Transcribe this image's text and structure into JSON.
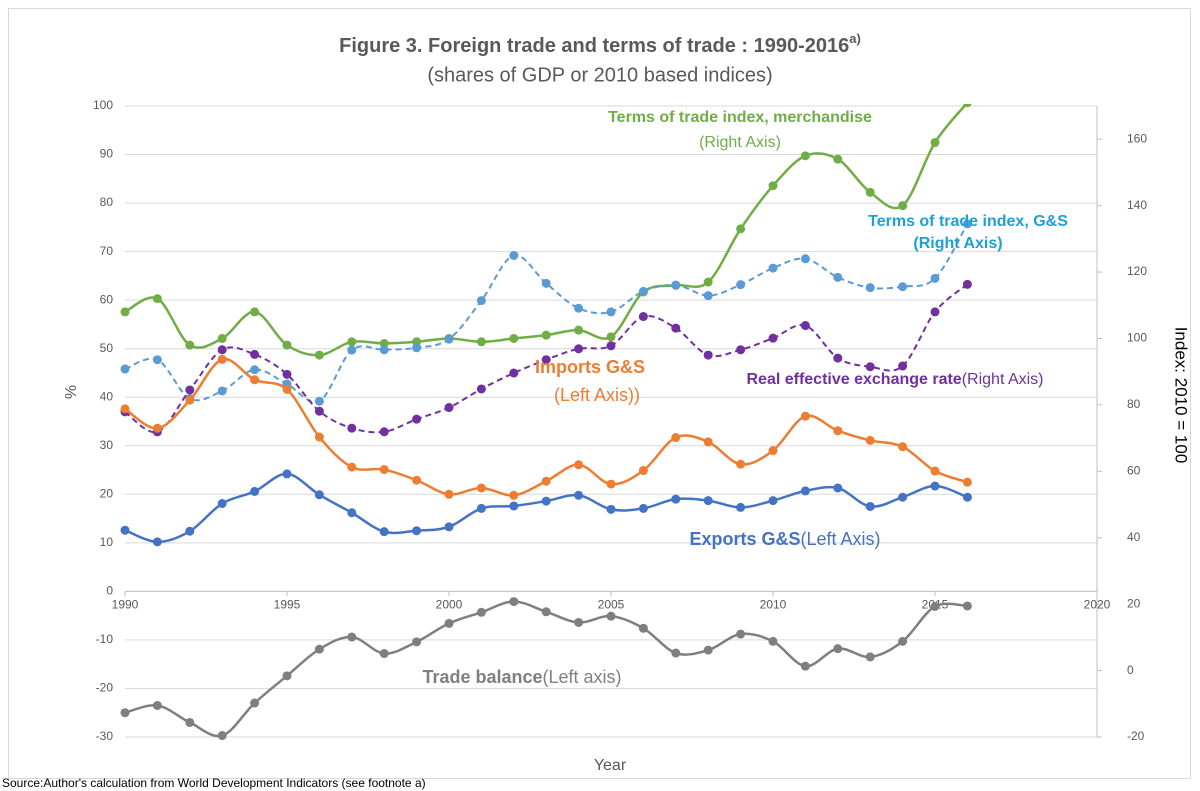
{
  "chart_data": {
    "type": "line",
    "title": "Figure 3. Foreign trade and terms of trade : 1990-2016",
    "title_superscript": "a)",
    "subtitle": "(shares of GDP or 2010 based indices)",
    "xlabel": "Year",
    "ylabel": "%",
    "y2label": "Index: 2010 = 100",
    "source": "Source:Author's calculation from World Development Indicators (see footnote a)",
    "grid": true,
    "xlim": [
      1990,
      2020
    ],
    "xticks": [
      1990,
      1995,
      2000,
      2005,
      2010,
      2015,
      2020
    ],
    "ylim": [
      -30,
      100
    ],
    "yticks": [
      -30,
      -20,
      -10,
      0,
      10,
      20,
      30,
      40,
      50,
      60,
      70,
      80,
      90,
      100
    ],
    "y2lim": [
      -20,
      170
    ],
    "y2ticks": [
      -20,
      0,
      20,
      40,
      60,
      80,
      100,
      120,
      140,
      160
    ],
    "x": [
      1990,
      1991,
      1992,
      1993,
      1994,
      1995,
      1996,
      1997,
      1998,
      1999,
      2000,
      2001,
      2002,
      2003,
      2004,
      2005,
      2006,
      2007,
      2008,
      2009,
      2010,
      2011,
      2012,
      2013,
      2014,
      2015,
      2016
    ],
    "series": [
      {
        "name": "Terms of trade index, merchandise",
        "note": "(Right Axis)",
        "color": "#70ad47",
        "axis": "y2",
        "dashed": false,
        "values": [
          108,
          112,
          98,
          100,
          108,
          98,
          95,
          99,
          98.5,
          99,
          100,
          99,
          100,
          101,
          102.5,
          100.5,
          114,
          116,
          117,
          133,
          146,
          155,
          154,
          144,
          140,
          159,
          171
        ]
      },
      {
        "name": "Terms of trade index, G&S",
        "note": "(Right Axis)",
        "color": "#5b9bd5",
        "axis": "y2",
        "dashed": true,
        "values": [
          90.8,
          93.6,
          81.9,
          84.2,
          90.6,
          86.3,
          81.1,
          96.5,
          96.6,
          97.2,
          99.8,
          111.4,
          125,
          116.6,
          109.1,
          108,
          114.2,
          116.1,
          112.9,
          116.2,
          121.2,
          124,
          118.4,
          115.3,
          115.6,
          118.1,
          134.5
        ]
      },
      {
        "name": "Real effective exchange rate",
        "note": "(Right Axis)",
        "color": "#7030a0",
        "axis": "y2",
        "dashed": true,
        "values": [
          77.9,
          71.9,
          84.5,
          96.6,
          95.2,
          89.2,
          78.1,
          73,
          71.9,
          75.7,
          79.2,
          84.8,
          89.6,
          93.6,
          96.9,
          97.8,
          106.6,
          103.1,
          95,
          96.6,
          100.1,
          103.9,
          94.1,
          91.5,
          91.7,
          108,
          116.3
        ]
      },
      {
        "name": "Imports G&S",
        "note": "(Left Axis))",
        "color": "#ed7d31",
        "axis": "y",
        "dashed": false,
        "values": [
          37.6,
          33.6,
          39.4,
          47.8,
          43.6,
          41.6,
          31.8,
          25.6,
          25.1,
          22.9,
          20,
          21.3,
          19.8,
          22.7,
          26.1,
          22.1,
          24.9,
          31.7,
          30.8,
          26.2,
          29,
          36.1,
          33.1,
          31.1,
          29.8,
          24.8,
          22.5
        ]
      },
      {
        "name": "Exports G&S",
        "note": "(Left Axis)",
        "color": "#4472c4",
        "axis": "y",
        "dashed": false,
        "values": [
          12.6,
          10.2,
          12.4,
          18.1,
          20.6,
          24.2,
          19.9,
          16.2,
          12.3,
          12.5,
          13.3,
          17.1,
          17.6,
          18.6,
          19.8,
          16.9,
          17.1,
          19,
          18.7,
          17.3,
          18.7,
          20.7,
          21.3,
          17.5,
          19.4,
          21.7,
          19.4
        ]
      },
      {
        "name": "Trade balance",
        "note": "(Left axis)",
        "color": "#7f7f7f",
        "axis": "y",
        "dashed": false,
        "values": [
          -25,
          -23.5,
          -27,
          -29.7,
          -23,
          -17.4,
          -11.9,
          -9.4,
          -12.8,
          -10.4,
          -6.6,
          -4.3,
          -2.1,
          -4.2,
          -6.4,
          -5.1,
          -7.6,
          -12.7,
          -12.1,
          -8.8,
          -10.3,
          -15.4,
          -11.8,
          -13.5,
          -10.3,
          -3.1,
          -3
        ]
      }
    ]
  }
}
